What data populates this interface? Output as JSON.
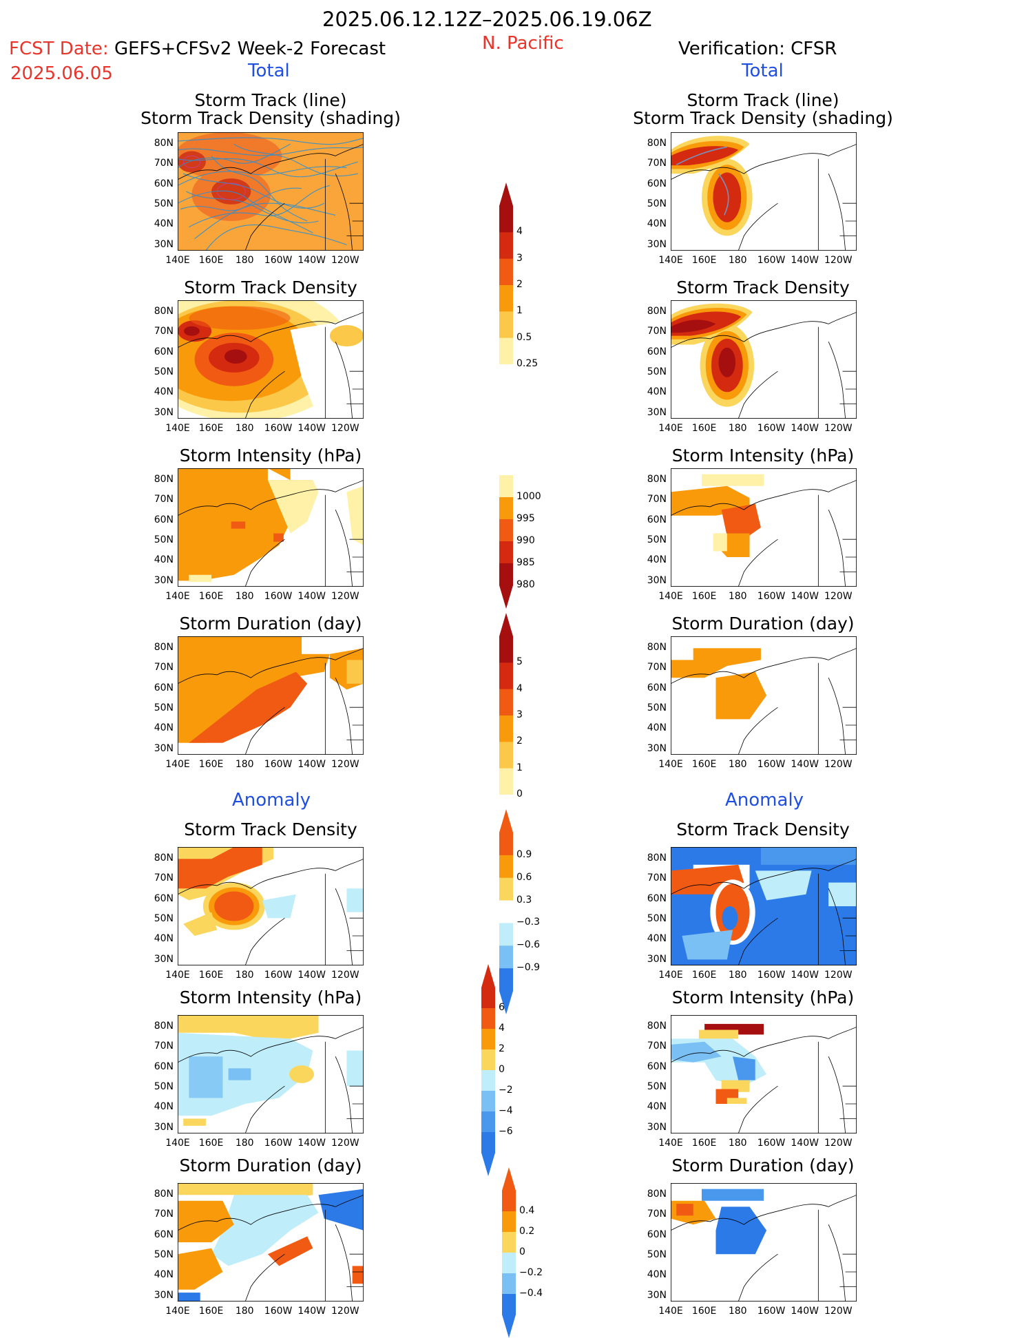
{
  "header": {
    "time_range": "2025.06.12.12Z–2025.06.19.06Z",
    "fcst_label": "FCST Date:",
    "model": "GEFS+CFSv2 Week-2 Forecast",
    "date": "2025.06.05",
    "region": "N. Pacific",
    "verification": "Verification: CFSR",
    "left_section": "Total",
    "right_section": "Total"
  },
  "sections": {
    "anomaly_left": "Anomaly",
    "anomaly_right": "Anomaly"
  },
  "panel_titles": {
    "track_line": "Storm Track (line)",
    "track_shading": "Storm Track Density (shading)",
    "density": "Storm Track Density",
    "intensity": "Storm Intensity (hPa)",
    "duration": "Storm Duration (day)"
  },
  "lat_labels": [
    "80N",
    "70N",
    "60N",
    "50N",
    "40N",
    "30N"
  ],
  "lon_labels": [
    "140E",
    "160E",
    "180",
    "160W",
    "140W",
    "120W"
  ],
  "colorbars": {
    "density_total": {
      "labels": [
        "4",
        "3",
        "2",
        "1",
        "0.5",
        "0.25"
      ],
      "colors": [
        "#a50f0f",
        "#d42a10",
        "#f05a12",
        "#f89a0a",
        "#fbc84a",
        "#fff2a8"
      ]
    },
    "intensity_total": {
      "labels": [
        "1000",
        "995",
        "990",
        "985",
        "980"
      ],
      "colors": [
        "#fff2a8",
        "#f89a0a",
        "#f05a12",
        "#d42a10",
        "#a50f0f"
      ]
    },
    "duration_total": {
      "labels": [
        "5",
        "4",
        "3",
        "2",
        "1",
        "0"
      ],
      "colors": [
        "#a50f0f",
        "#d42a10",
        "#f05a12",
        "#f89a0a",
        "#fbc84a",
        "#fff2a8"
      ]
    },
    "density_anom": {
      "labels": [
        "0.9",
        "0.6",
        "0.3",
        "−0.3",
        "−0.6",
        "−0.9"
      ],
      "colors": [
        "#f05a12",
        "#f89a0a",
        "#fbd65c",
        "#ffffff",
        "#bfeefa",
        "#7ac0f5",
        "#2b7ae8"
      ]
    },
    "intensity_anom": {
      "labels": [
        "6",
        "4",
        "2",
        "0",
        "−2",
        "−4",
        "−6"
      ],
      "colors": [
        "#d42a10",
        "#f05a12",
        "#f89a0a",
        "#fbd65c",
        "#bfeefa",
        "#7ac0f5",
        "#4a98ee",
        "#2b7ae8"
      ]
    },
    "duration_anom": {
      "labels": [
        "0.4",
        "0.2",
        "0",
        "−0.2",
        "−0.4"
      ],
      "colors": [
        "#f05a12",
        "#f89a0a",
        "#fbd65c",
        "#bfeefa",
        "#7ac0f5",
        "#2b7ae8"
      ]
    }
  }
}
